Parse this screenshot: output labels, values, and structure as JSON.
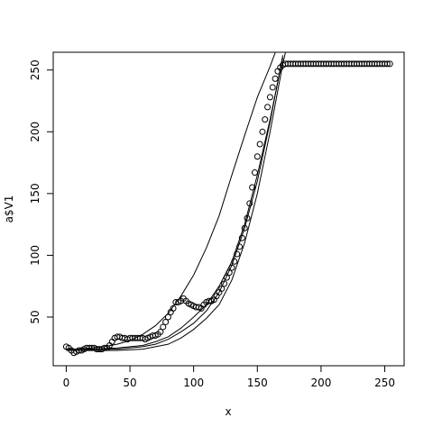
{
  "chart_data": {
    "type": "scatter",
    "xlabel": "x",
    "ylabel": "a$V1",
    "color": "#000000",
    "x": [
      0,
      2,
      4,
      6,
      8,
      10,
      12,
      14,
      16,
      18,
      20,
      22,
      24,
      26,
      28,
      30,
      32,
      34,
      36,
      38,
      40,
      42,
      44,
      46,
      48,
      50,
      52,
      54,
      56,
      58,
      60,
      62,
      64,
      66,
      68,
      70,
      72,
      74,
      76,
      78,
      80,
      82,
      84,
      86,
      88,
      90,
      92,
      94,
      96,
      98,
      100,
      102,
      104,
      106,
      108,
      110,
      112,
      114,
      116,
      118,
      120,
      122,
      124,
      126,
      128,
      130,
      132,
      134,
      136,
      138,
      140,
      142,
      144,
      146,
      148,
      150,
      152,
      154,
      156,
      158,
      160,
      162,
      164,
      166,
      168,
      170,
      172,
      174,
      176,
      178,
      180,
      182,
      184,
      186,
      188,
      190,
      192,
      194,
      196,
      198,
      200,
      202,
      204,
      206,
      208,
      210,
      212,
      214,
      216,
      218,
      220,
      222,
      224,
      226,
      228,
      230,
      232,
      234,
      236,
      238,
      240,
      242,
      244,
      246,
      248,
      250,
      252,
      254
    ],
    "values": [
      26,
      25,
      23,
      21,
      22,
      23,
      23,
      24,
      25,
      25,
      25,
      25,
      24,
      24,
      24,
      25,
      25,
      27,
      30,
      33,
      34,
      34,
      33,
      33,
      32,
      33,
      33,
      33,
      33,
      33,
      33,
      32,
      33,
      34,
      35,
      35,
      36,
      38,
      42,
      46,
      50,
      54,
      57,
      62,
      62,
      63,
      65,
      63,
      61,
      60,
      59,
      58,
      58,
      57,
      60,
      62,
      63,
      63,
      64,
      67,
      70,
      73,
      77,
      82,
      86,
      90,
      95,
      101,
      107,
      114,
      122,
      130,
      142,
      155,
      167,
      180,
      190,
      200,
      210,
      220,
      228,
      236,
      243,
      249,
      252,
      254,
      255,
      255,
      255,
      255,
      255,
      255,
      255,
      255,
      255,
      255,
      255,
      255,
      255,
      255,
      255,
      255,
      255,
      255,
      255,
      255,
      255,
      255,
      255,
      255,
      255,
      255,
      255,
      255,
      255,
      255,
      255,
      255,
      255,
      255,
      255,
      255,
      255,
      255,
      255,
      255,
      255,
      255
    ],
    "lines": [
      {
        "x": [
          0,
          10,
          20,
          30,
          40,
          50,
          60,
          70,
          80,
          90,
          100,
          110,
          120,
          130,
          140,
          150,
          160,
          164
        ],
        "values": [
          24,
          24,
          25,
          26,
          28,
          31,
          36,
          43,
          53,
          67,
          84,
          106,
          132,
          165,
          197,
          228,
          253,
          264
        ]
      },
      {
        "x": [
          0,
          20,
          40,
          60,
          70,
          80,
          90,
          100,
          110,
          120,
          130,
          140,
          150,
          160,
          170
        ],
        "values": [
          24,
          24,
          25,
          27,
          30,
          34,
          41,
          50,
          60,
          75,
          95,
          125,
          165,
          210,
          260
        ]
      },
      {
        "x": [
          0,
          20,
          40,
          60,
          70,
          80,
          90,
          100,
          110,
          120,
          130,
          140,
          150,
          160,
          170
        ],
        "values": [
          24,
          24,
          24,
          26,
          28,
          32,
          38,
          45,
          55,
          70,
          92,
          122,
          160,
          208,
          262
        ]
      },
      {
        "x": [
          0,
          20,
          40,
          60,
          80,
          90,
          100,
          110,
          120,
          130,
          140,
          150,
          160,
          170,
          172
        ],
        "values": [
          23,
          23,
          23,
          24,
          28,
          33,
          40,
          49,
          60,
          80,
          110,
          150,
          200,
          255,
          264
        ]
      }
    ],
    "xlim": [
      -10.2,
      265.2
    ],
    "ylim": [
      10.6,
      264.4
    ],
    "xticks": [
      0,
      50,
      100,
      150,
      200,
      250
    ],
    "yticks": [
      50,
      100,
      150,
      200,
      250
    ]
  }
}
